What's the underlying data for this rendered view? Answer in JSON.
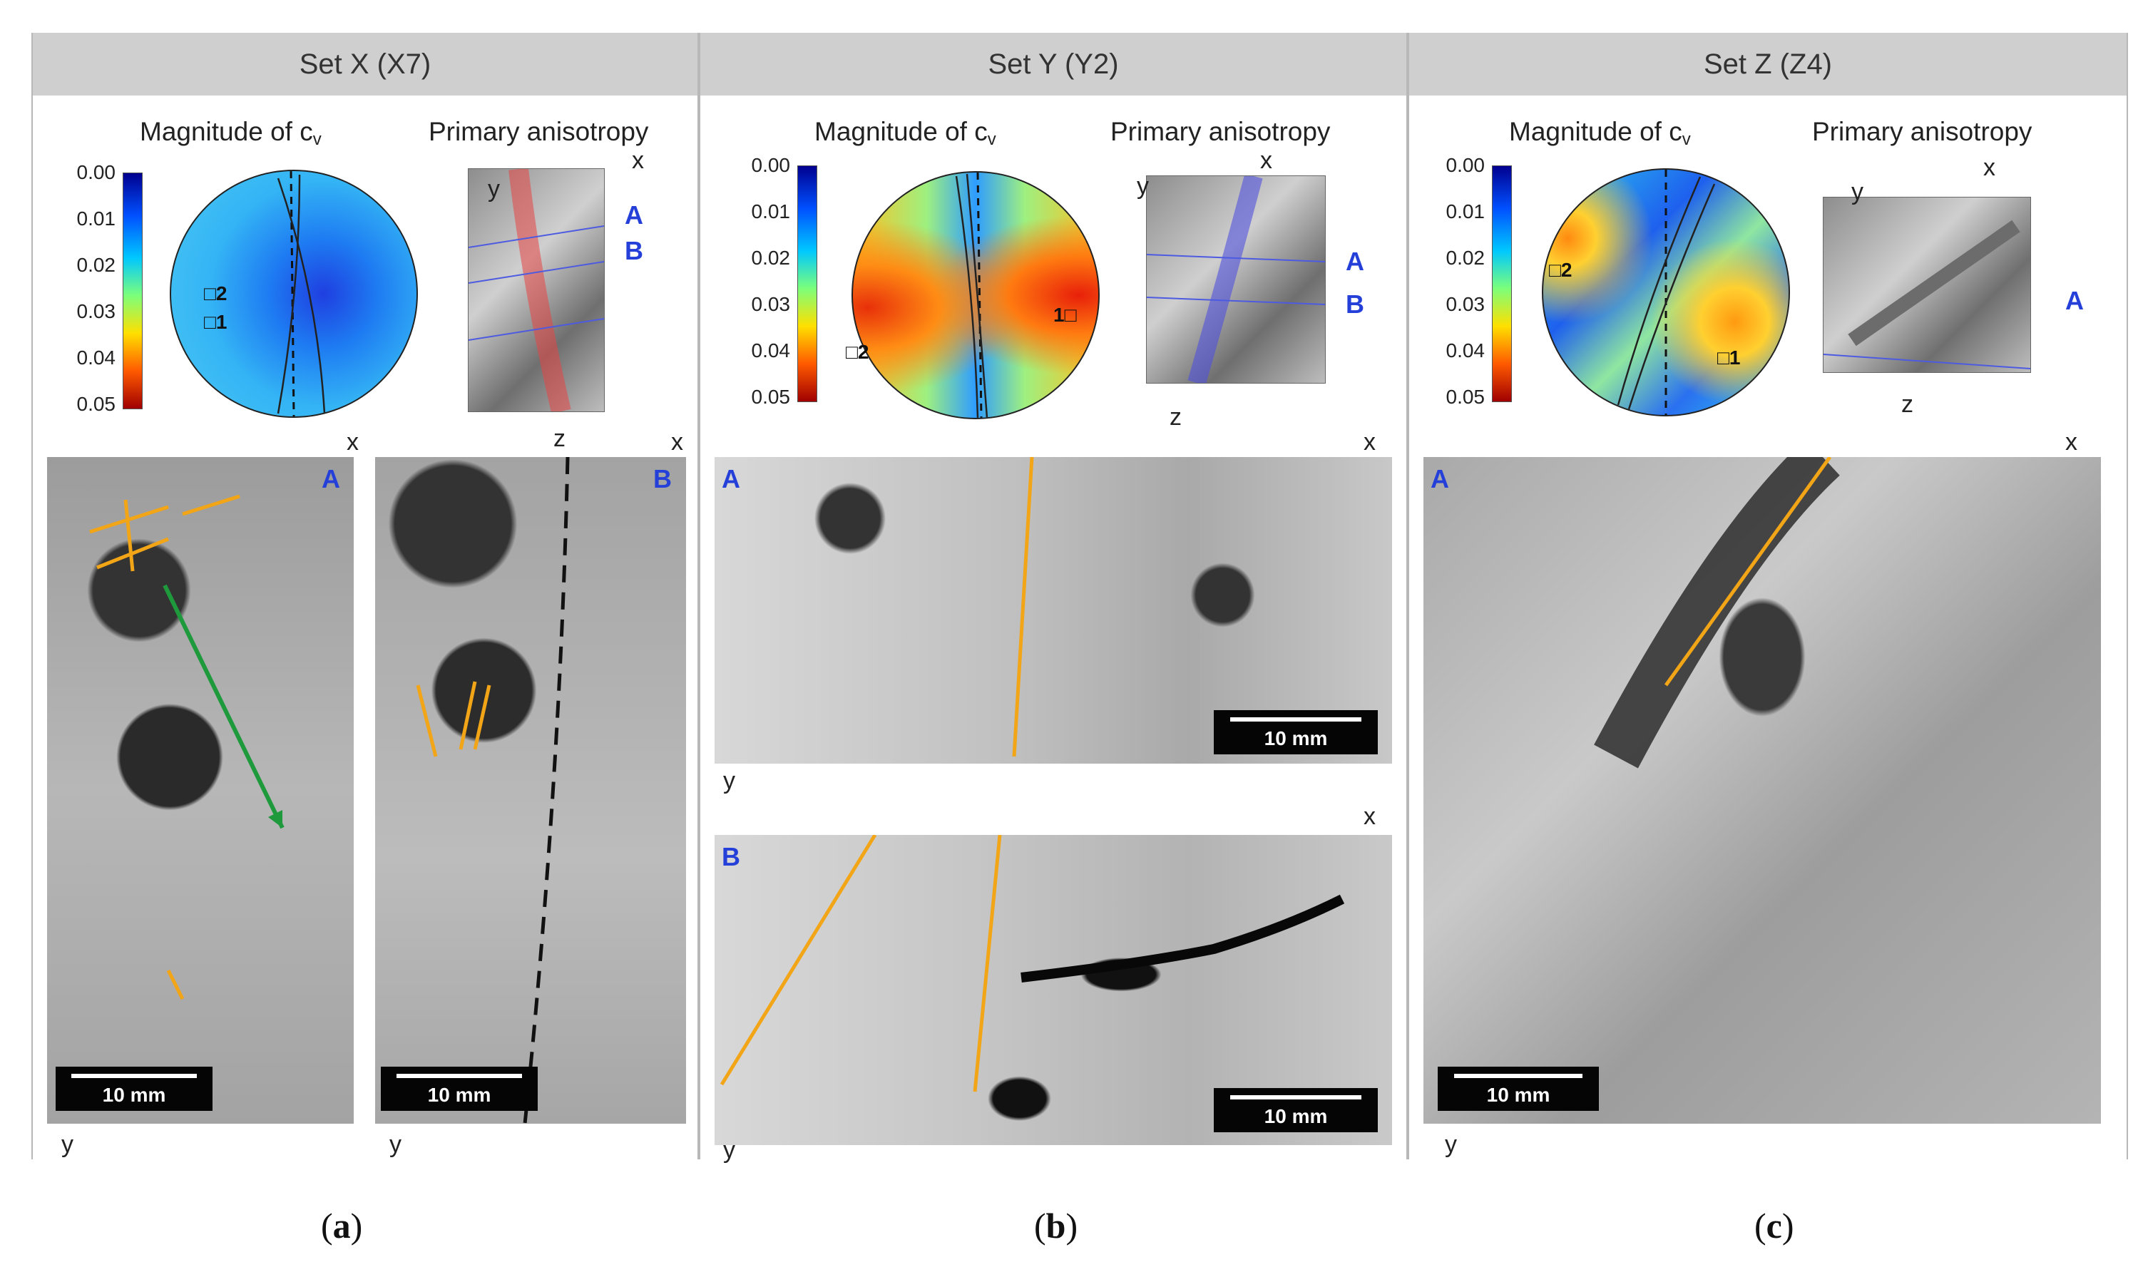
{
  "panels": [
    {
      "title": "Set X (X7)",
      "magnitude_label": "Magnitude of c",
      "magnitude_sub": "v",
      "anisotropy_label": "Primary anisotropy",
      "colorbar_ticks": [
        "0.00",
        "0.01",
        "0.02",
        "0.03",
        "0.04",
        "0.05"
      ],
      "disk_points": [
        "2",
        "1"
      ],
      "cube_axes": {
        "x": "x",
        "y": "y",
        "z": "z"
      },
      "cube_regions": [
        "A",
        "B"
      ],
      "slices": [
        {
          "region": "A",
          "axis_x": "x",
          "axis_y": "y",
          "scale": "10 mm"
        },
        {
          "region": "B",
          "axis_x": "x",
          "axis_y": "y",
          "scale": "10 mm"
        }
      ],
      "caption_letter": "a"
    },
    {
      "title": "Set Y (Y2)",
      "magnitude_label": "Magnitude of c",
      "magnitude_sub": "v",
      "anisotropy_label": "Primary anisotropy",
      "colorbar_ticks": [
        "0.00",
        "0.01",
        "0.02",
        "0.03",
        "0.04",
        "0.05"
      ],
      "disk_points": [
        "2",
        "1"
      ],
      "cube_axes": {
        "x": "x",
        "y": "y",
        "z": "z"
      },
      "cube_regions": [
        "A",
        "B"
      ],
      "slices": [
        {
          "region": "A",
          "axis_x": "x",
          "axis_y": "y",
          "scale": "10 mm"
        },
        {
          "region": "B",
          "axis_x": "x",
          "axis_y": "y",
          "scale": "10 mm"
        }
      ],
      "caption_letter": "b"
    },
    {
      "title": "Set Z (Z4)",
      "magnitude_label": "Magnitude of c",
      "magnitude_sub": "v",
      "anisotropy_label": "Primary anisotropy",
      "colorbar_ticks": [
        "0.00",
        "0.01",
        "0.02",
        "0.03",
        "0.04",
        "0.05"
      ],
      "disk_points": [
        "2",
        "1"
      ],
      "cube_axes": {
        "x": "x",
        "y": "y",
        "z": "z"
      },
      "cube_regions": [
        "A"
      ],
      "slices": [
        {
          "region": "A",
          "axis_x": "x",
          "axis_y": "y",
          "scale": "10 mm"
        }
      ],
      "caption_letter": "c"
    }
  ],
  "colors": {
    "header": "#cfcfcf",
    "region_label": "#2540d8",
    "trace_orange": "#f2a516",
    "arrow_green": "#1e9a3c"
  }
}
